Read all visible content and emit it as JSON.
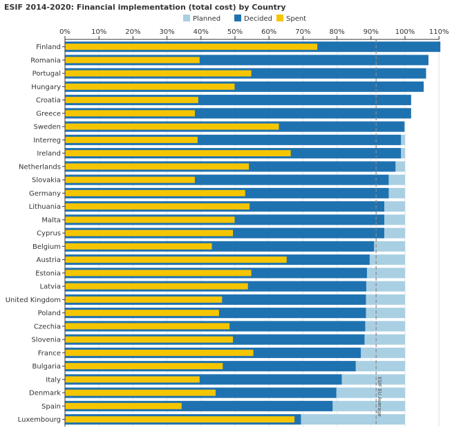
{
  "chart_data": {
    "type": "bar",
    "orientation": "horizontal",
    "title": "ESIF 2014-2020: Financial implementation (total cost) by Country",
    "xlim": [
      0,
      110
    ],
    "x_ticks": [
      "0%",
      "10%",
      "20%",
      "30%",
      "40%",
      "50%",
      "60%",
      "70%",
      "80%",
      "90%",
      "100%",
      "110%"
    ],
    "legend_position": "top",
    "categories": [
      "Finland",
      "Romania",
      "Portugal",
      "Hungary",
      "Croatia",
      "Greece",
      "Sweden",
      "Interreg",
      "Ireland",
      "Netherlands",
      "Slovakia",
      "Germany",
      "Lithuania",
      "Malta",
      "Cyprus",
      "Belgium",
      "Austria",
      "Estonia",
      "Latvia",
      "United Kingdom",
      "Poland",
      "Czechia",
      "Slovenia",
      "France",
      "Bulgaria",
      "Italy",
      "Denmark",
      "Spain",
      "Luxembourg"
    ],
    "series": [
      {
        "name": "Planned",
        "color": "#a9cfe3",
        "values": [
          100,
          100,
          100,
          100,
          100,
          100,
          100,
          100,
          100,
          100,
          100,
          100,
          100,
          100,
          100,
          100,
          100,
          100,
          100,
          100,
          100,
          100,
          100,
          100,
          100,
          100,
          100,
          100,
          100
        ]
      },
      {
        "name": "Decided",
        "color": "#1f72b0",
        "values": [
          110.4,
          106.9,
          106.2,
          105.5,
          101.8,
          101.8,
          99.8,
          98.8,
          98.8,
          97.2,
          95.2,
          95.2,
          93.9,
          93.9,
          93.9,
          90.9,
          89.6,
          88.8,
          88.6,
          88.5,
          88.5,
          88.3,
          88.1,
          87.0,
          85.5,
          81.4,
          79.8,
          78.7,
          69.4
        ]
      },
      {
        "name": "Spent",
        "color": "#f5c500",
        "values": [
          74.2,
          39.6,
          54.8,
          49.9,
          39.2,
          38.2,
          62.9,
          39.0,
          66.4,
          54.1,
          38.2,
          53.0,
          54.3,
          49.9,
          49.4,
          43.2,
          65.2,
          54.8,
          53.8,
          46.2,
          45.3,
          48.4,
          49.4,
          55.4,
          46.4,
          39.6,
          44.3,
          34.3,
          67.5
        ]
      }
    ],
    "reference_line": {
      "label": "ESIF EU Average",
      "value": 91.5,
      "color": "#888888"
    }
  }
}
